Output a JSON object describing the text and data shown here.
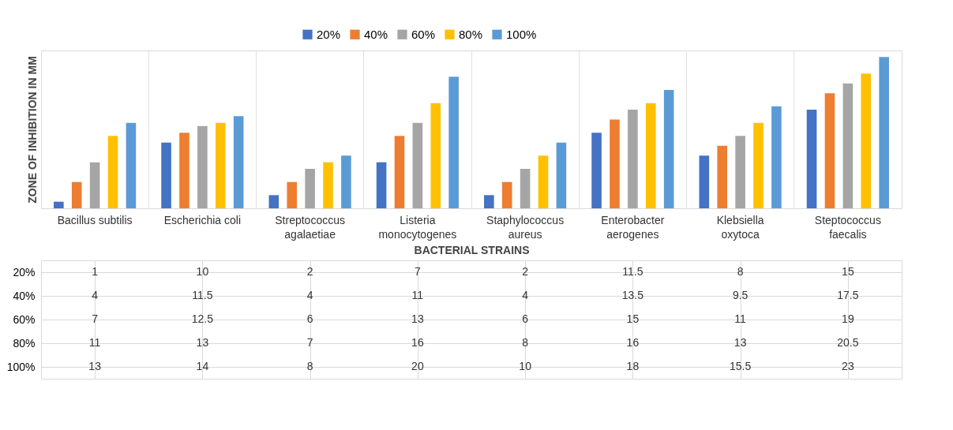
{
  "chart_data": {
    "type": "bar",
    "xlabel": "BACTERIAL STRAINS",
    "ylabel": "ZONE OF INHIBITION IN MM",
    "categories": [
      "Bacillus subtilis",
      "Escherichia coli",
      "Streptococcus agalaetiae",
      "Listeria monocytogenes",
      "Staphylococcus aureus",
      "Enterobacter aerogenes",
      "Klebsiella oxytoca",
      "Steptococcus faecalis"
    ],
    "series": [
      {
        "name": "20%",
        "color": "#4472c4",
        "values": [
          1,
          10,
          2,
          7,
          2,
          11.5,
          8,
          15
        ]
      },
      {
        "name": "40%",
        "color": "#ed7d31",
        "values": [
          4,
          11.5,
          4,
          11,
          4,
          13.5,
          9.5,
          17.5
        ]
      },
      {
        "name": "60%",
        "color": "#a5a5a5",
        "values": [
          7,
          12.5,
          6,
          13,
          6,
          15,
          11,
          19
        ]
      },
      {
        "name": "80%",
        "color": "#ffc000",
        "values": [
          11,
          13,
          7,
          16,
          8,
          16,
          13,
          20.5
        ]
      },
      {
        "name": "100%",
        "color": "#5b9bd5",
        "values": [
          13,
          14,
          8,
          20,
          10,
          18,
          15.5,
          23
        ]
      }
    ],
    "data_labels": true,
    "legend": "top",
    "tick_labels": "x"
  }
}
